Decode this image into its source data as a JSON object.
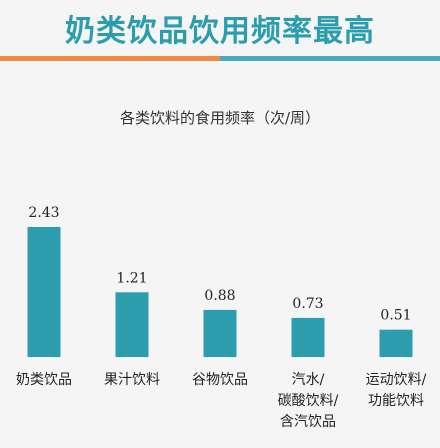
{
  "header": {
    "title": "奶类饮品饮用频率最高"
  },
  "colors": {
    "title": "#2b9dad",
    "bar": "#2b9dad",
    "rule_left": "#ef8a44",
    "rule_right": "#48aac0",
    "background": "#f5f5f5"
  },
  "chart_data": {
    "type": "bar",
    "title": "各类饮料的食用频率（次/周）",
    "categories": [
      [
        "奶类饮品"
      ],
      [
        "果汁饮料"
      ],
      [
        "谷物饮品"
      ],
      [
        "汽水/",
        "碳酸饮料/",
        "含汽饮品"
      ],
      [
        "运动饮料/",
        "功能饮料"
      ]
    ],
    "values": [
      2.43,
      1.21,
      0.88,
      0.73,
      0.51
    ],
    "value_labels": [
      "2.43",
      "1.21",
      "0.88",
      "0.73",
      "0.51"
    ],
    "ylim": [
      0,
      2.43
    ],
    "grid": false,
    "legend": "none"
  }
}
